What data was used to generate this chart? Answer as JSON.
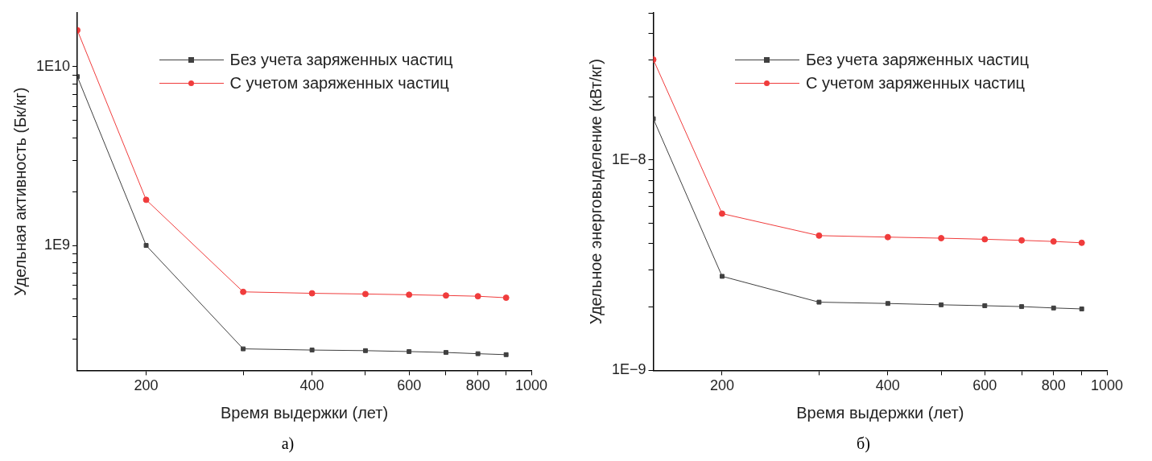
{
  "chart_data": [
    {
      "type": "line",
      "xlabel": "Время выдержки (лет)",
      "ylabel": "Удельная активность (Бк/кг)",
      "log": "xy",
      "grid": false,
      "legend": "top",
      "line_style": "solid",
      "x": [
        150,
        200,
        300,
        400,
        500,
        600,
        700,
        800,
        900
      ],
      "xlim": [
        150,
        1000
      ],
      "xticks": [
        {
          "value": 200,
          "label": "200"
        },
        {
          "value": 300,
          "label": null
        },
        {
          "value": 400,
          "label": "400"
        },
        {
          "value": 500,
          "label": null
        },
        {
          "value": 600,
          "label": "600"
        },
        {
          "value": 700,
          "label": null
        },
        {
          "value": 800,
          "label": "800"
        },
        {
          "value": 900,
          "label": null
        },
        {
          "value": 1000,
          "label": "1000"
        }
      ],
      "ylim": [
        200000000.0,
        20000000000.0
      ],
      "yticks": [
        {
          "value": 300000000.0,
          "label": null
        },
        {
          "value": 400000000.0,
          "label": null
        },
        {
          "value": 500000000.0,
          "label": null
        },
        {
          "value": 600000000.0,
          "label": null
        },
        {
          "value": 700000000.0,
          "label": null
        },
        {
          "value": 800000000.0,
          "label": null
        },
        {
          "value": 900000000.0,
          "label": null
        },
        {
          "value": 1000000000.0,
          "label": "1E9"
        },
        {
          "value": 2000000000.0,
          "label": null
        },
        {
          "value": 3000000000.0,
          "label": null
        },
        {
          "value": 4000000000.0,
          "label": null
        },
        {
          "value": 5000000000.0,
          "label": null
        },
        {
          "value": 6000000000.0,
          "label": null
        },
        {
          "value": 7000000000.0,
          "label": null
        },
        {
          "value": 8000000000.0,
          "label": null
        },
        {
          "value": 9000000000.0,
          "label": null
        },
        {
          "value": 10000000000.0,
          "label": "1E10"
        }
      ],
      "series": [
        {
          "name": "Без учета заряженных частиц",
          "color": "#404040",
          "marker": "square",
          "values": [
            8800000000.0,
            1000000000.0,
            264000000.0,
            260000000.0,
            258000000.0,
            255000000.0,
            252000000.0,
            248000000.0,
            245000000.0
          ]
        },
        {
          "name": "С учетом заряженных частиц",
          "color": "#f03c3c",
          "marker": "circle",
          "values": [
            16000000000.0,
            1800000000.0,
            550000000.0,
            540000000.0,
            535000000.0,
            530000000.0,
            525000000.0,
            520000000.0,
            510000000.0
          ]
        }
      ],
      "annotations": [
        "а)"
      ]
    },
    {
      "type": "line",
      "xlabel": "Время выдержки (лет)",
      "ylabel": "Удельное энерговыделение (кВт/кг)",
      "log": "xy",
      "grid": false,
      "legend": "top",
      "line_style": "solid",
      "x": [
        150,
        200,
        300,
        400,
        500,
        600,
        700,
        800,
        900
      ],
      "xlim": [
        150,
        1000
      ],
      "xticks": [
        {
          "value": 200,
          "label": "200"
        },
        {
          "value": 300,
          "label": null
        },
        {
          "value": 400,
          "label": "400"
        },
        {
          "value": 500,
          "label": null
        },
        {
          "value": 600,
          "label": "600"
        },
        {
          "value": 700,
          "label": null
        },
        {
          "value": 800,
          "label": "800"
        },
        {
          "value": 900,
          "label": null
        },
        {
          "value": 1000,
          "label": "1000"
        }
      ],
      "ylim": [
        1e-09,
        5e-08
      ],
      "yticks": [
        {
          "value": 1e-09,
          "label": "1E−9"
        },
        {
          "value": 2e-09,
          "label": null
        },
        {
          "value": 3e-09,
          "label": null
        },
        {
          "value": 4e-09,
          "label": null
        },
        {
          "value": 5e-09,
          "label": null
        },
        {
          "value": 6e-09,
          "label": null
        },
        {
          "value": 7e-09,
          "label": null
        },
        {
          "value": 8e-09,
          "label": null
        },
        {
          "value": 9e-09,
          "label": null
        },
        {
          "value": 1e-08,
          "label": "1E−8"
        },
        {
          "value": 2e-08,
          "label": null
        },
        {
          "value": 3e-08,
          "label": null
        },
        {
          "value": 4e-08,
          "label": null
        },
        {
          "value": 5e-08,
          "label": null
        }
      ],
      "series": [
        {
          "name": "Без учета заряженных частиц",
          "color": "#404040",
          "marker": "square",
          "values": [
            1.57e-08,
            2.8e-09,
            2.11e-09,
            2.08e-09,
            2.05e-09,
            2.03e-09,
            2.01e-09,
            1.98e-09,
            1.96e-09
          ]
        },
        {
          "name": "С учетом заряженных частиц",
          "color": "#f03c3c",
          "marker": "circle",
          "values": [
            3e-08,
            5.56e-09,
            4.37e-09,
            4.3e-09,
            4.25e-09,
            4.2e-09,
            4.15e-09,
            4.1e-09,
            4.04e-09
          ]
        }
      ],
      "annotations": [
        "б)"
      ]
    }
  ]
}
